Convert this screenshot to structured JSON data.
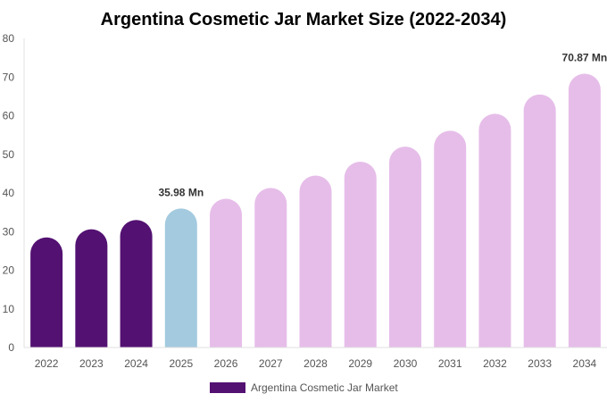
{
  "chart_data": {
    "type": "bar",
    "title": "Argentina Cosmetic Jar Market Size (2022-2034)",
    "categories": [
      "2022",
      "2023",
      "2024",
      "2025",
      "2026",
      "2027",
      "2028",
      "2029",
      "2030",
      "2031",
      "2032",
      "2033",
      "2034"
    ],
    "series": [
      {
        "name": "Argentina Cosmetic Jar Market",
        "values": [
          28.5,
          30.6,
          33.0,
          35.98,
          38.5,
          41.3,
          44.5,
          48.1,
          52.0,
          56.1,
          60.5,
          65.5,
          70.87
        ]
      }
    ],
    "bar_colors": [
      "#531172",
      "#531172",
      "#531172",
      "#a3cadf",
      "#e6bde9",
      "#e6bde9",
      "#e6bde9",
      "#e6bde9",
      "#e6bde9",
      "#e6bde9",
      "#e6bde9",
      "#e6bde9",
      "#e6bde9"
    ],
    "data_labels": [
      {
        "category": "2025",
        "text": "35.98 Mn"
      },
      {
        "category": "2034",
        "text": "70.87 Mn"
      }
    ],
    "ylim": [
      0,
      80
    ],
    "yticks": [
      0,
      10,
      20,
      30,
      40,
      50,
      60,
      70,
      80
    ],
    "xlabel": "",
    "ylabel": "",
    "grid": false,
    "legend": {
      "position": "bottom",
      "color": "#531172"
    }
  }
}
